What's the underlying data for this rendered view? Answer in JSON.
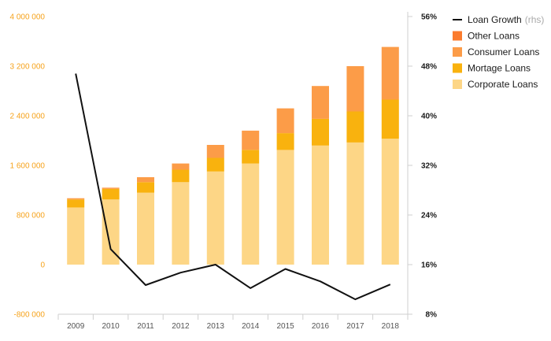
{
  "chart_data": {
    "type": "bar",
    "stacked": true,
    "categories": [
      "2009",
      "2010",
      "2011",
      "2012",
      "2013",
      "2014",
      "2015",
      "2016",
      "2017",
      "2018"
    ],
    "left_axis": {
      "min": -800000,
      "max": 4000000,
      "ticks": [
        -800000,
        0,
        800000,
        1600000,
        2400000,
        3200000,
        4000000
      ],
      "tick_labels": [
        "-800 000",
        "0",
        "800 000",
        "1 600 000",
        "2 400 000",
        "3 200 000",
        "4 000 000"
      ]
    },
    "right_axis": {
      "min": 8,
      "max": 56,
      "ticks": [
        8,
        16,
        24,
        32,
        40,
        48,
        56
      ],
      "tick_labels": [
        "8%",
        "16%",
        "24%",
        "32%",
        "40%",
        "48%",
        "56%"
      ]
    },
    "series": [
      {
        "name": "Corporate Loans",
        "color": "#fdd686",
        "values": [
          920000,
          1050000,
          1160000,
          1330000,
          1500000,
          1630000,
          1850000,
          1920000,
          1970000,
          2030000
        ]
      },
      {
        "name": "Mortage Loans",
        "color": "#f9b20e",
        "values": [
          130000,
          170000,
          170000,
          200000,
          220000,
          220000,
          270000,
          430000,
          500000,
          630000
        ]
      },
      {
        "name": "Consumer Loans",
        "color": "#fc9c48",
        "values": [
          20000,
          20000,
          80000,
          100000,
          210000,
          310000,
          400000,
          530000,
          730000,
          850000
        ]
      },
      {
        "name": "Other Loans",
        "color": "#fb7b2d",
        "values": [
          0,
          0,
          0,
          0,
          0,
          0,
          0,
          0,
          0,
          0
        ]
      }
    ],
    "line_series": {
      "name": "Loan Growth",
      "axis_label": "(rhs)",
      "color": "#111111",
      "values": [
        46.8,
        18.5,
        12.7,
        14.7,
        16.0,
        12.2,
        15.3,
        13.3,
        10.4,
        12.8
      ]
    },
    "legend": [
      {
        "label": "Loan Growth",
        "suffix": "(rhs)",
        "kind": "line",
        "color": "#111111"
      },
      {
        "label": "Other Loans",
        "suffix": "",
        "kind": "box",
        "color": "#fb7b2d"
      },
      {
        "label": "Consumer Loans",
        "suffix": "",
        "kind": "box",
        "color": "#fc9c48"
      },
      {
        "label": "Mortage Loans",
        "suffix": "",
        "kind": "box",
        "color": "#f9b20e"
      },
      {
        "label": "Corporate Loans",
        "suffix": "",
        "kind": "box",
        "color": "#fdd686"
      }
    ],
    "legend_position": "top-right",
    "grid": false
  }
}
